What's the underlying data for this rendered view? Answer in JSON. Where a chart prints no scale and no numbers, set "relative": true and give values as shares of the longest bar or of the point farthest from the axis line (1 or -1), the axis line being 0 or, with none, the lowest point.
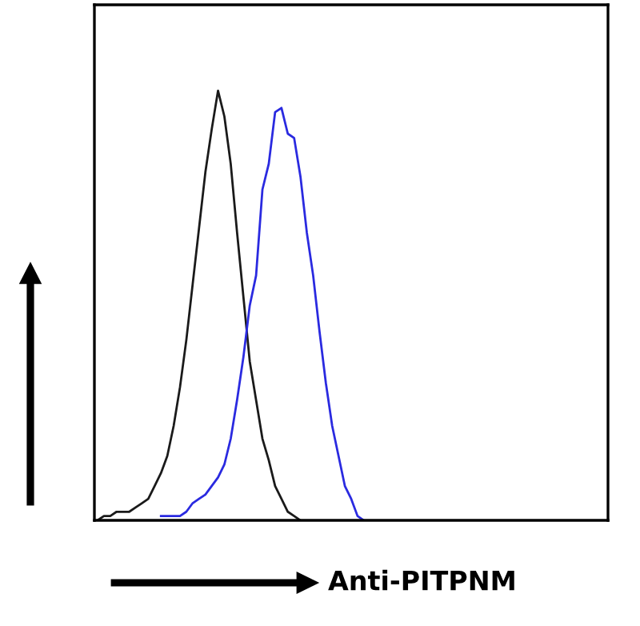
{
  "chart_data": {
    "type": "line",
    "relative": true,
    "xlabel": "Anti-PITPNM",
    "categories": [
      null,
      null,
      null,
      null,
      null,
      null,
      null,
      null,
      null,
      null,
      null,
      null,
      null,
      null,
      null,
      null,
      null,
      null,
      null,
      null,
      null,
      null,
      null,
      null,
      null,
      null,
      null,
      null,
      null,
      null,
      null,
      null,
      null,
      null,
      null,
      null,
      null,
      null,
      null,
      null,
      null,
      null,
      null,
      null,
      null,
      null,
      null,
      null,
      null,
      null,
      null,
      null,
      null,
      null,
      null,
      null,
      null,
      null,
      null,
      null,
      null,
      null,
      null,
      null,
      null,
      null,
      null,
      null,
      null,
      null,
      null,
      null,
      null,
      null,
      null,
      null,
      null,
      null,
      null,
      null,
      null
    ],
    "series": [
      {
        "color": "#1a1a1a",
        "values": [
          0,
          0.01,
          0.01,
          0.02,
          0.02,
          0.02,
          0.03,
          0.04,
          0.05,
          0.08,
          0.11,
          0.15,
          0.22,
          0.31,
          0.42,
          0.55,
          0.68,
          0.81,
          0.91,
          1,
          0.94,
          0.83,
          0.67,
          0.52,
          0.37,
          0.28,
          0.19,
          0.14,
          0.08,
          0.05,
          0.02,
          0.01,
          0,
          null,
          null,
          null,
          null,
          null,
          null,
          null,
          null,
          null,
          null,
          null,
          null,
          null,
          null,
          null,
          null,
          null,
          null,
          null,
          null,
          null,
          null,
          null,
          null,
          null,
          null,
          null,
          null,
          null,
          null,
          null,
          null,
          null,
          null,
          null,
          null,
          null,
          null,
          null,
          null,
          null,
          null,
          null,
          null,
          null,
          null,
          null,
          null
        ]
      },
      {
        "color": "#2a2ae0",
        "values": [
          null,
          null,
          null,
          null,
          null,
          null,
          null,
          null,
          null,
          null,
          0.01,
          0.01,
          0.01,
          0.01,
          0.02,
          0.04,
          0.05,
          0.06,
          0.08,
          0.1,
          0.13,
          0.19,
          0.28,
          0.38,
          0.5,
          0.57,
          0.77,
          0.83,
          0.95,
          0.96,
          0.9,
          0.89,
          0.8,
          0.67,
          0.57,
          0.44,
          0.32,
          0.22,
          0.15,
          0.08,
          0.05,
          0.01,
          0,
          null,
          null,
          null,
          null,
          null,
          null,
          null,
          null,
          null,
          null,
          null,
          null,
          null,
          null,
          null,
          null,
          null,
          null,
          null,
          null,
          null,
          null,
          null,
          null,
          null,
          null,
          null,
          null,
          null,
          null,
          null,
          null,
          null,
          null,
          null,
          null,
          null,
          null
        ]
      }
    ]
  }
}
